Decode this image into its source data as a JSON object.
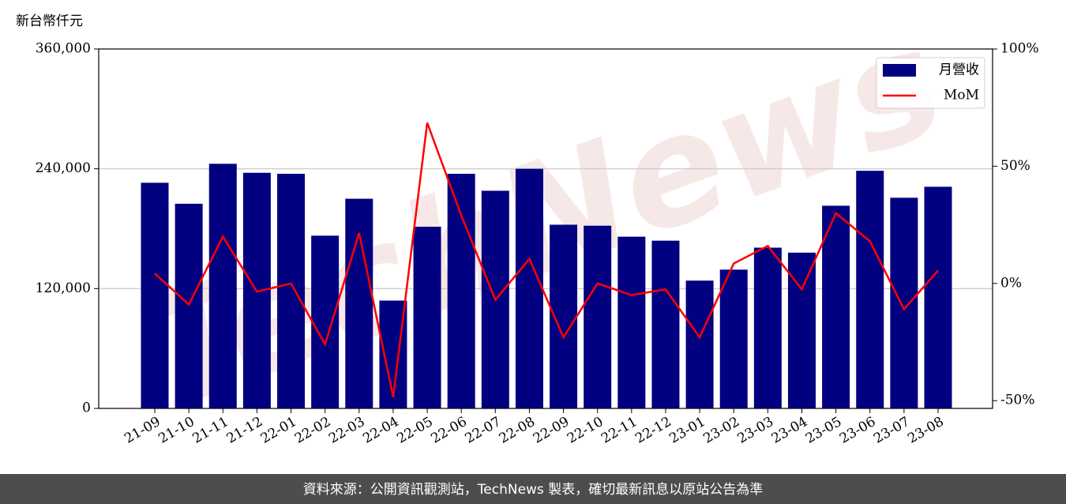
{
  "chart_data": {
    "type": "bar_line",
    "y_label": "新台幣仟元",
    "watermark": "TechNews",
    "footer": "資料來源：公開資訊觀測站，TechNews 製表，確切最新訊息以原站公告為準",
    "categories": [
      "21-09",
      "21-10",
      "21-11",
      "21-12",
      "22-01",
      "22-02",
      "22-03",
      "22-04",
      "22-05",
      "22-06",
      "22-07",
      "22-08",
      "22-09",
      "22-10",
      "22-11",
      "22-12",
      "23-01",
      "23-02",
      "23-03",
      "23-04",
      "23-05",
      "23-06",
      "23-07",
      "23-08"
    ],
    "series": [
      {
        "name": "月營收",
        "type": "bar",
        "color": "#000080",
        "values": [
          226000,
          205000,
          245000,
          236000,
          235000,
          173000,
          210000,
          108000,
          182000,
          235000,
          218000,
          240000,
          184000,
          183000,
          172000,
          168000,
          128000,
          139000,
          161000,
          156000,
          203000,
          238000,
          211000,
          222000
        ]
      },
      {
        "name": "MoM",
        "type": "line",
        "color": "#ff0000",
        "axis": "y2",
        "values": [
          4.3,
          -9,
          20,
          -3.5,
          0,
          -26,
          21.5,
          -48.5,
          68.5,
          29,
          -7,
          10.5,
          -23,
          0,
          -5,
          -2.5,
          -23,
          8.5,
          16,
          -2.5,
          30,
          18,
          -11,
          5.5
        ]
      }
    ],
    "ylim": [
      0,
      360000
    ],
    "yticks": [
      0,
      {
        "value": 120000,
        "label": "120,000"
      },
      {
        "value": 240000,
        "label": "240,000"
      },
      {
        "value": 360000,
        "label": "360,000"
      }
    ],
    "y2lim": [
      -53.3,
      100
    ],
    "y2ticks": [
      {
        "value": -50,
        "label": "-50%"
      },
      {
        "value": 0,
        "label": "0%"
      },
      {
        "value": 50,
        "label": "50%"
      },
      {
        "value": 100,
        "label": "100%"
      }
    ],
    "grid": true,
    "legend": "upper right"
  }
}
